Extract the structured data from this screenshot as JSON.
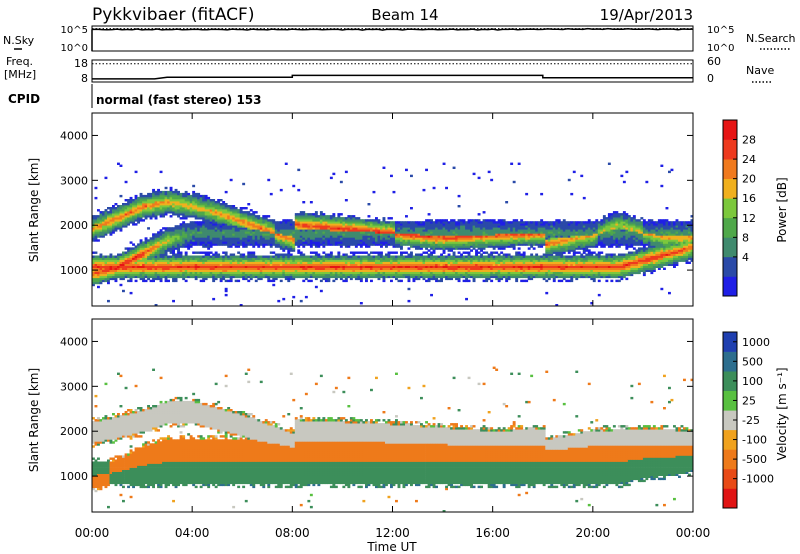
{
  "header": {
    "title_left": "Pykkvibaer (fitACF)",
    "title_center": "Beam 14",
    "title_right": "19/Apr/2013"
  },
  "top_panels": {
    "nsky_label": "N.Sky",
    "nsearch_label": "N.Search",
    "nsky_ticks": [
      "10^5",
      "10^0"
    ],
    "freq_label_1": "Freq.",
    "freq_label_2": "[MHz]",
    "freq_ticks": [
      "18",
      "8"
    ],
    "nave_label": "Nave",
    "nave_ticks": [
      "60",
      "0"
    ],
    "cpid_label": "CPID",
    "cpid_text": "normal (fast stereo) 153"
  },
  "colors": {
    "power": [
      "#1f1fe6",
      "#2a4aa8",
      "#3f8a6e",
      "#4fa84a",
      "#7cc83c",
      "#f0b01e",
      "#f07a1e",
      "#ee3a1e",
      "#e61414"
    ],
    "velocity": [
      "#1f3fb0",
      "#2d6e8e",
      "#3c8e5a",
      "#58c040",
      "#c8c8c0",
      "#f0a21e",
      "#ee7a1a",
      "#e84a16",
      "#e01414"
    ]
  },
  "chart_data": [
    {
      "type": "line",
      "title": "N.Sky / N.Search",
      "x": [
        "00:00",
        "04:00",
        "08:00",
        "12:00",
        "16:00",
        "20:00",
        "00:00"
      ],
      "yscale": "log",
      "ylim": [
        1,
        100000
      ],
      "series": [
        {
          "name": "N.Sky",
          "values": [
            20000,
            20000,
            20000,
            20000,
            20000,
            25000,
            22000
          ]
        },
        {
          "name": "N.Search",
          "values": [
            30000,
            30000,
            30000,
            30000,
            30000,
            30000,
            30000
          ]
        }
      ]
    },
    {
      "type": "line",
      "title": "Freq. [MHz] / Nave",
      "x": [
        "00:00",
        "02:30",
        "03:00",
        "08:00",
        "08:00",
        "18:00",
        "18:00",
        "24:00"
      ],
      "ylim": [
        8,
        18
      ],
      "series": [
        {
          "name": "Freq.",
          "values": [
            9.4,
            9.4,
            10.2,
            10.2,
            11.0,
            11.0,
            9.9,
            9.9
          ]
        },
        {
          "name": "Nave",
          "values": [
            50,
            50,
            50,
            50,
            50,
            50,
            50,
            50
          ]
        }
      ]
    },
    {
      "type": "heatmap",
      "title": "Power [dB]",
      "xlabel": "Time UT",
      "ylabel": "Slant Range [km]",
      "xlim_hours": [
        0,
        24
      ],
      "ylim": [
        200,
        4500
      ],
      "xticks": [
        "00:00",
        "04:00",
        "08:00",
        "12:00",
        "16:00",
        "20:00",
        "00:00"
      ],
      "yticks": [
        1000,
        2000,
        3000,
        4000
      ],
      "colorbar_label": "Power [dB]",
      "colorbar_ticks": [
        4,
        8,
        12,
        16,
        20,
        24,
        28
      ],
      "colorbar_range": [
        0,
        32
      ],
      "bands": [
        {
          "t_hours": [
            0,
            1,
            2,
            3,
            4,
            5,
            6,
            7,
            8,
            8,
            10,
            12,
            14,
            16,
            18,
            18,
            20,
            21,
            22,
            23,
            24
          ],
          "center_km": [
            1900,
            2150,
            2400,
            2500,
            2400,
            2250,
            2050,
            1850,
            1650,
            2000,
            1900,
            1800,
            1700,
            1750,
            1800,
            1550,
            1750,
            2000,
            1800,
            1700,
            1700
          ],
          "core_db": [
            22,
            24,
            24,
            22,
            20,
            22,
            24,
            24,
            24,
            26,
            28,
            28,
            27,
            26,
            26,
            24,
            20,
            18,
            20,
            22,
            22
          ]
        },
        {
          "t_hours": [
            0,
            1,
            2,
            3,
            4
          ],
          "center_km": [
            900,
            1050,
            1350,
            1650,
            1800
          ],
          "core_db": [
            26,
            30,
            28,
            18,
            10
          ]
        },
        {
          "t_hours": [
            21,
            22,
            23,
            24
          ],
          "center_km": [
            1050,
            1200,
            1350,
            1500
          ],
          "core_db": [
            28,
            28,
            28,
            24
          ]
        }
      ]
    },
    {
      "type": "heatmap",
      "title": "Velocity [m s-1]",
      "xlabel": "Time UT",
      "ylabel": "Slant Range [km]",
      "xlim_hours": [
        0,
        24
      ],
      "ylim": [
        200,
        4500
      ],
      "xticks": [
        "00:00",
        "04:00",
        "08:00",
        "12:00",
        "16:00",
        "20:00",
        "00:00"
      ],
      "yticks": [
        1000,
        2000,
        3000,
        4000
      ],
      "colorbar_label": "Velocity [m s-1]",
      "colorbar_ticks": [
        1000,
        500,
        100,
        25,
        -25,
        -100,
        -500,
        -1000
      ],
      "bands": [
        {
          "t_hours": [
            0,
            2,
            3,
            4,
            6,
            8,
            8,
            12,
            16,
            18,
            18,
            20,
            22,
            24
          ],
          "center_km": [
            1950,
            2200,
            2400,
            2400,
            2100,
            1700,
            2000,
            1900,
            1750,
            1800,
            1550,
            1750,
            1800,
            1750
          ],
          "velocity": 0
        },
        {
          "t_hours": [
            0,
            1,
            2,
            3
          ],
          "center_km": [
            950,
            1100,
            1400,
            1550
          ],
          "velocity": -150
        },
        {
          "t_hours": [
            21,
            22,
            23,
            24
          ],
          "center_km": [
            1050,
            1200,
            1250,
            1350
          ],
          "velocity": 400
        }
      ]
    }
  ],
  "axes": {
    "ylabel_power": "Slant Range [km]",
    "ylabel_velocity": "Slant Range [km]",
    "ytick_labels": [
      "4000",
      "3000",
      "2000",
      "1000"
    ],
    "xtick_labels": [
      "00:00",
      "04:00",
      "08:00",
      "12:00",
      "16:00",
      "20:00",
      "00:00"
    ],
    "xlabel": "Time UT",
    "power_colorbar_label": "Power [dB]",
    "power_colorbar_ticks": [
      "28",
      "24",
      "20",
      "16",
      "12",
      "8",
      "4"
    ],
    "velocity_colorbar_label": "Velocity [m s⁻¹]",
    "velocity_colorbar_ticks": [
      "1000",
      "500",
      "100",
      "25",
      "-25",
      "-100",
      "-500",
      "-1000"
    ]
  }
}
